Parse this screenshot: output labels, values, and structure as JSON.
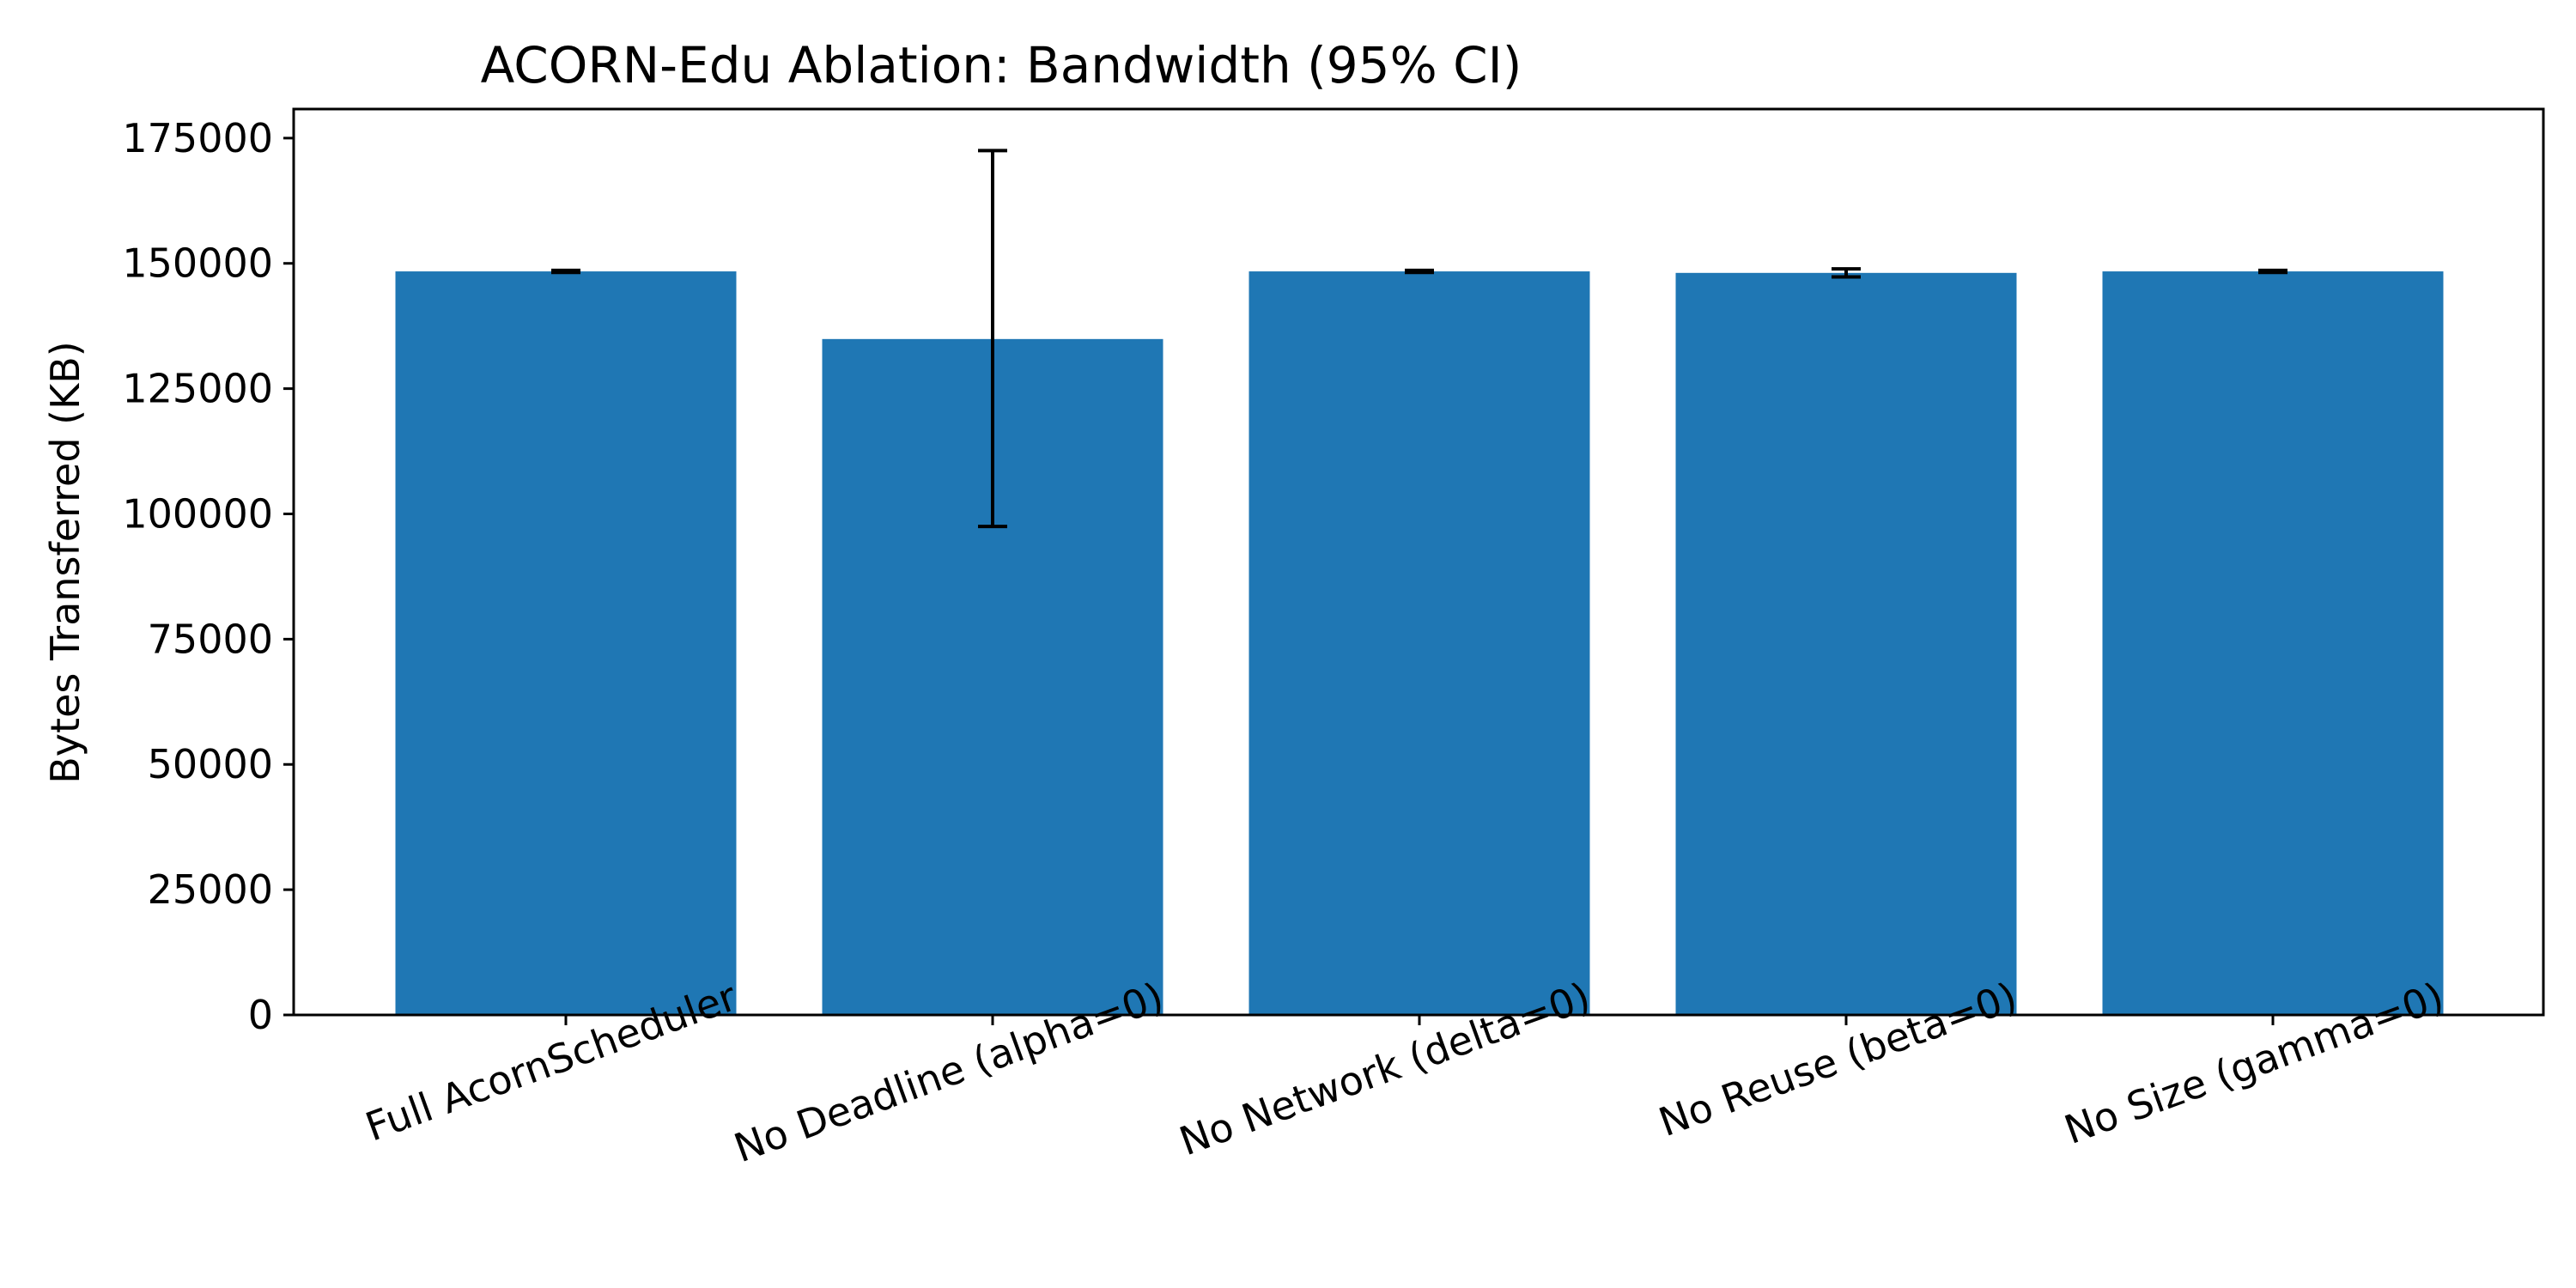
{
  "chart_data": {
    "type": "bar",
    "title": "ACORN-Edu Ablation: Bandwidth (95% CI)",
    "xlabel": "",
    "ylabel": "Bytes Transferred (KB)",
    "categories": [
      "Full AcornScheduler",
      "No Deadline (alpha=0)",
      "No Network (delta=0)",
      "No Reuse (beta=0)",
      "No Size (gamma=0)"
    ],
    "values": [
      148400,
      134900,
      148400,
      148100,
      148400
    ],
    "ci_low": [
      148200,
      97500,
      148200,
      147300,
      148200
    ],
    "ci_high": [
      148600,
      172500,
      148600,
      148900,
      148600
    ],
    "ylim": [
      0,
      180800
    ],
    "yticks": [
      0,
      25000,
      50000,
      75000,
      100000,
      125000,
      150000,
      175000
    ],
    "bar_color": "#1f77b4",
    "grid": false,
    "legend": "none"
  }
}
